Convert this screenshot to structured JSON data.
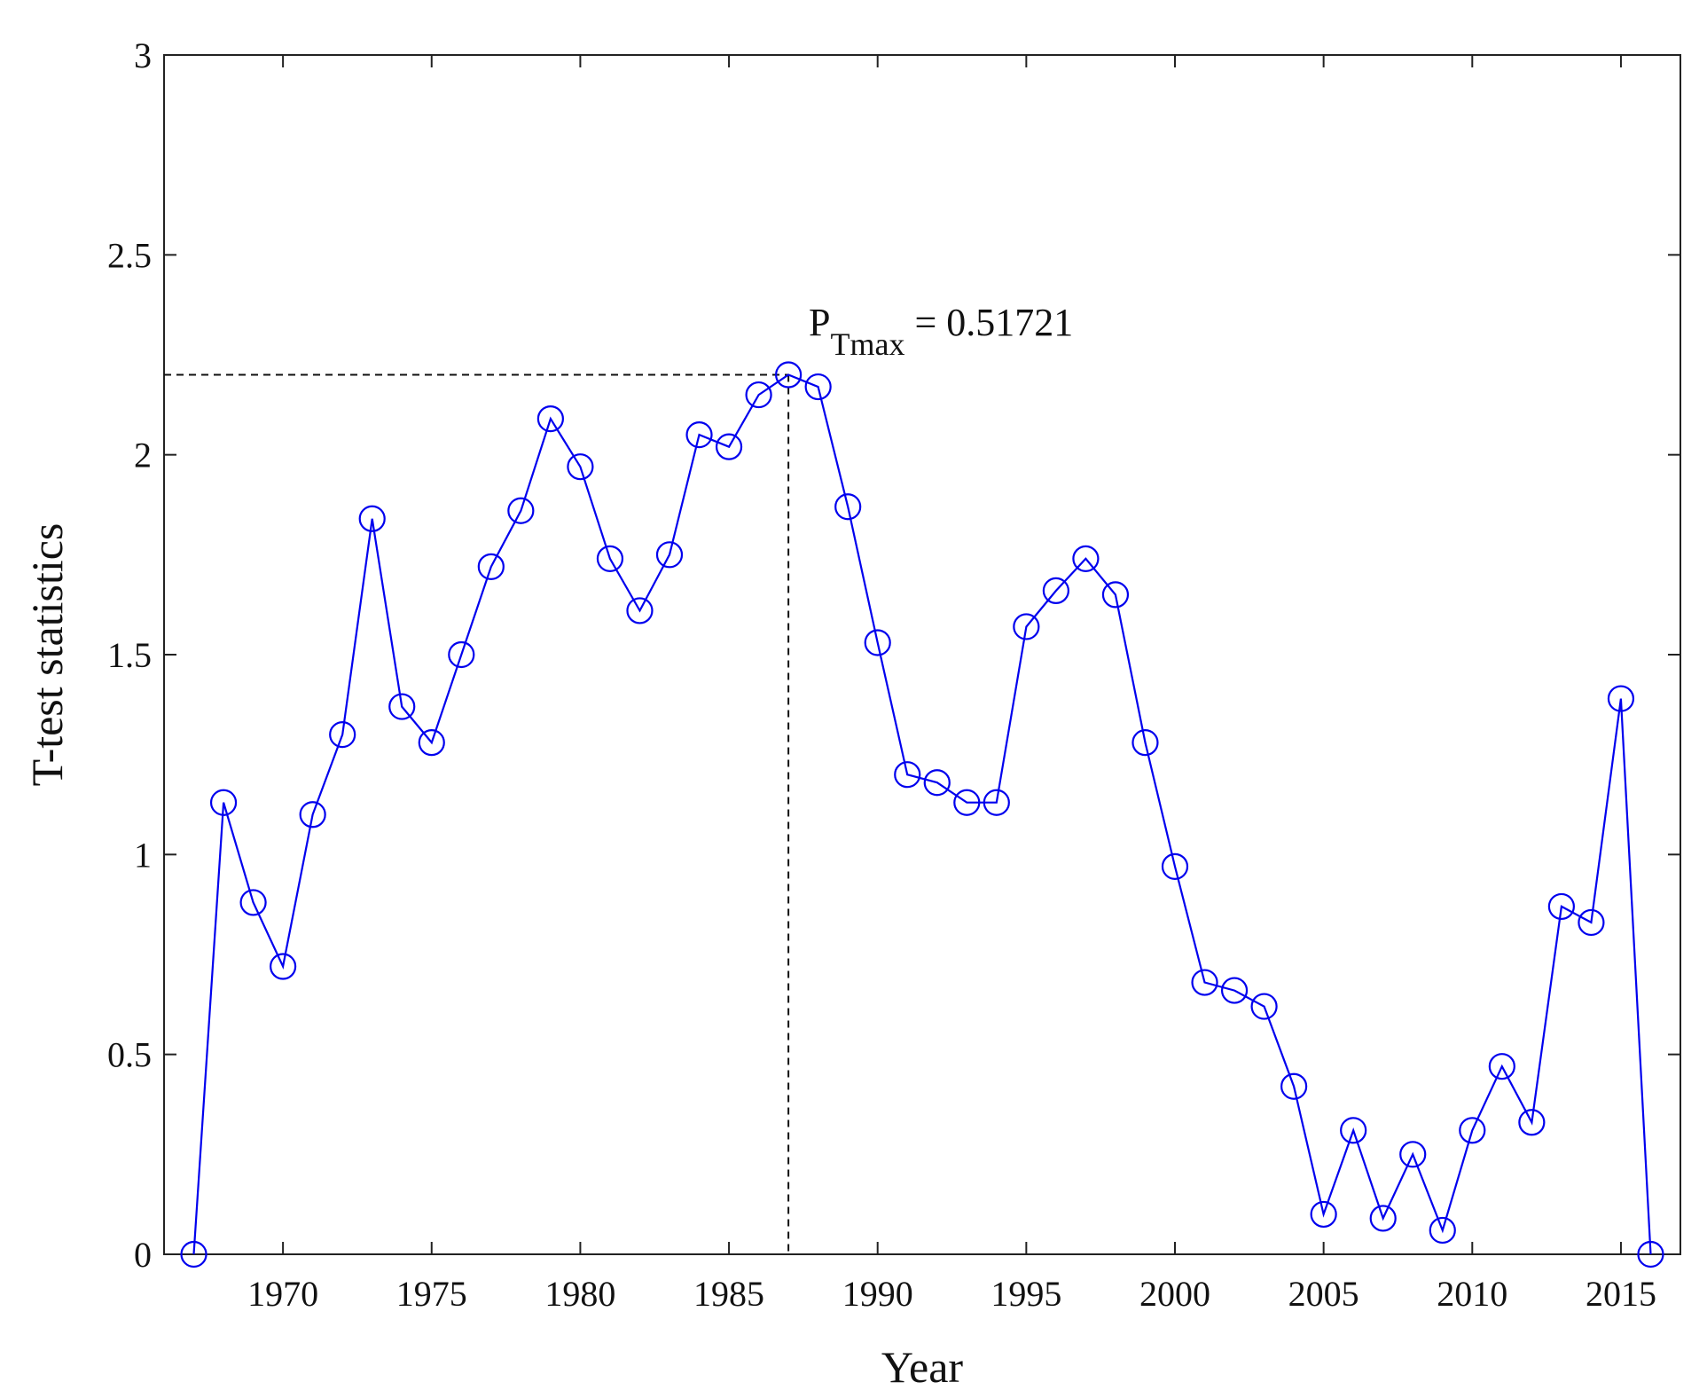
{
  "chart_data": {
    "type": "line",
    "title": "",
    "xlabel": "Year",
    "ylabel": "T-test statistics",
    "xlim": [
      1966,
      2017
    ],
    "ylim": [
      0,
      3
    ],
    "xticks": [
      1970,
      1975,
      1980,
      1985,
      1990,
      1995,
      2000,
      2005,
      2010,
      2015
    ],
    "xtick_labels": [
      "1970",
      "1975",
      "1980",
      "1985",
      "1990",
      "1995",
      "2000",
      "2005",
      "2010",
      "2015"
    ],
    "yticks": [
      0,
      0.5,
      1,
      1.5,
      2,
      2.5,
      3
    ],
    "ytick_labels": [
      "0",
      "0.5",
      "1",
      "1.5",
      "2",
      "2.5",
      "3"
    ],
    "grid": false,
    "series": [
      {
        "color": "#0000ee",
        "marker": "open-circle",
        "x": [
          1967,
          1968,
          1969,
          1970,
          1971,
          1972,
          1973,
          1974,
          1975,
          1976,
          1977,
          1978,
          1979,
          1980,
          1981,
          1982,
          1983,
          1984,
          1985,
          1986,
          1987,
          1988,
          1989,
          1990,
          1991,
          1992,
          1993,
          1994,
          1995,
          1996,
          1997,
          1998,
          1999,
          2000,
          2001,
          2002,
          2003,
          2004,
          2005,
          2006,
          2007,
          2008,
          2009,
          2010,
          2011,
          2012,
          2013,
          2014,
          2015,
          2016
        ],
        "y": [
          0,
          1.13,
          0.88,
          0.72,
          1.1,
          1.3,
          1.84,
          1.37,
          1.28,
          1.5,
          1.72,
          1.86,
          2.09,
          1.97,
          1.74,
          1.61,
          1.75,
          2.05,
          2.02,
          2.15,
          2.2,
          2.17,
          1.87,
          1.53,
          1.2,
          1.18,
          1.13,
          1.13,
          1.57,
          1.66,
          1.74,
          1.65,
          1.28,
          0.97,
          0.68,
          0.66,
          0.62,
          0.42,
          0.1,
          0.31,
          0.09,
          0.25,
          0.06,
          0.31,
          0.47,
          0.33,
          0.87,
          0.83,
          1.39,
          0
        ]
      }
    ],
    "max_point": {
      "x": 1987,
      "y": 2.2
    },
    "annotation": {
      "p_label": "P",
      "p_subscript": "Tmax",
      "p_value_text": " = 0.51721"
    }
  }
}
